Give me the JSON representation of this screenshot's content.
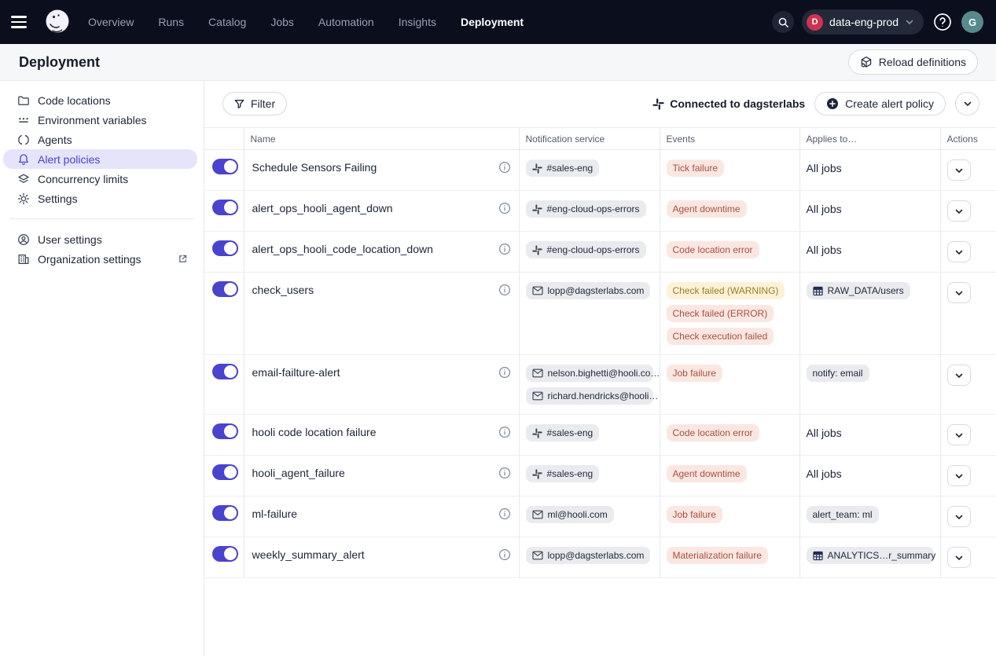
{
  "colors": {
    "topnav_bg": "#0b0e1d",
    "accent": "#4943cd",
    "accent_bg": "#e5e4fa",
    "badge_red": "#ce3350",
    "avatar_teal": "#568a8d",
    "error_pill_bg": "#fbe7e2",
    "error_pill_text": "#a8503c",
    "warn_pill_bg": "#fdf2d8",
    "warn_pill_text": "#9c7c22",
    "tag_bg": "#e9ebef",
    "tag_text": "#1f2737"
  },
  "topnav": {
    "items": [
      "Overview",
      "Runs",
      "Catalog",
      "Jobs",
      "Automation",
      "Insights",
      "Deployment"
    ],
    "active_item": "Deployment",
    "deployment_switcher": {
      "initial": "D",
      "label": "data-eng-prod"
    },
    "avatar_initial": "G"
  },
  "header": {
    "title": "Deployment",
    "reload_button_label": "Reload definitions"
  },
  "sidebar": {
    "items": [
      {
        "label": "Code locations",
        "icon": "folder-icon"
      },
      {
        "label": "Environment variables",
        "icon": "env-vars-icon"
      },
      {
        "label": "Agents",
        "icon": "agents-icon"
      },
      {
        "label": "Alert policies",
        "icon": "bell-icon",
        "active": true
      },
      {
        "label": "Concurrency limits",
        "icon": "layers-icon"
      },
      {
        "label": "Settings",
        "icon": "gear-icon"
      }
    ],
    "footer_items": [
      {
        "label": "User settings",
        "icon": "user-circle-icon"
      },
      {
        "label": "Organization settings",
        "icon": "organization-icon",
        "external_link": true
      }
    ]
  },
  "toolbar": {
    "filter_label": "Filter",
    "connected_label": "Connected to dagsterlabs",
    "create_button_label": "Create alert policy"
  },
  "table": {
    "columns": [
      "Name",
      "Notification service",
      "Events",
      "Applies to…",
      "Actions"
    ],
    "rows": [
      {
        "enabled": true,
        "name": "Schedule Sensors Failing",
        "notifications": [
          {
            "type": "slack",
            "label": "#sales-eng"
          }
        ],
        "events": [
          {
            "label": "Tick failure",
            "level": "error"
          }
        ],
        "applies_to": {
          "type": "text",
          "label": "All jobs"
        }
      },
      {
        "enabled": true,
        "name": "alert_ops_hooli_agent_down",
        "notifications": [
          {
            "type": "slack",
            "label": "#eng-cloud-ops-errors"
          }
        ],
        "events": [
          {
            "label": "Agent downtime",
            "level": "error"
          }
        ],
        "applies_to": {
          "type": "text",
          "label": "All jobs"
        }
      },
      {
        "enabled": true,
        "name": "alert_ops_hooli_code_location_down",
        "notifications": [
          {
            "type": "slack",
            "label": "#eng-cloud-ops-errors"
          }
        ],
        "events": [
          {
            "label": "Code location error",
            "level": "error"
          }
        ],
        "applies_to": {
          "type": "text",
          "label": "All jobs"
        }
      },
      {
        "enabled": true,
        "name": "check_users",
        "notifications": [
          {
            "type": "email",
            "label": "lopp@dagsterlabs.com"
          }
        ],
        "events": [
          {
            "label": "Check failed (WARNING)",
            "level": "warning"
          },
          {
            "label": "Check failed (ERROR)",
            "level": "error"
          },
          {
            "label": "Check execution failed",
            "level": "error"
          }
        ],
        "applies_to": {
          "type": "asset",
          "label": "RAW_DATA/users"
        }
      },
      {
        "enabled": true,
        "name": "email-failture-alert",
        "notifications": [
          {
            "type": "email",
            "label": "nelson.bighetti@hooli.co…"
          },
          {
            "type": "email",
            "label": "richard.hendricks@hooli…"
          }
        ],
        "events": [
          {
            "label": "Job failure",
            "level": "error"
          }
        ],
        "applies_to": {
          "type": "tag",
          "label": "notify: email"
        }
      },
      {
        "enabled": true,
        "name": "hooli code location failure",
        "notifications": [
          {
            "type": "slack",
            "label": "#sales-eng"
          }
        ],
        "events": [
          {
            "label": "Code location error",
            "level": "error"
          }
        ],
        "applies_to": {
          "type": "text",
          "label": "All jobs"
        }
      },
      {
        "enabled": true,
        "name": "hooli_agent_failure",
        "notifications": [
          {
            "type": "slack",
            "label": "#sales-eng"
          }
        ],
        "events": [
          {
            "label": "Agent downtime",
            "level": "error"
          }
        ],
        "applies_to": {
          "type": "text",
          "label": "All jobs"
        }
      },
      {
        "enabled": true,
        "name": "ml-failure",
        "notifications": [
          {
            "type": "email",
            "label": "ml@hooli.com"
          }
        ],
        "events": [
          {
            "label": "Job failure",
            "level": "error"
          }
        ],
        "applies_to": {
          "type": "tag",
          "label": "alert_team: ml"
        }
      },
      {
        "enabled": true,
        "name": "weekly_summary_alert",
        "notifications": [
          {
            "type": "email",
            "label": "lopp@dagsterlabs.com"
          }
        ],
        "events": [
          {
            "label": "Materialization failure",
            "level": "error"
          }
        ],
        "applies_to": {
          "type": "asset",
          "label": "ANALYTICS…r_summary"
        }
      }
    ]
  }
}
